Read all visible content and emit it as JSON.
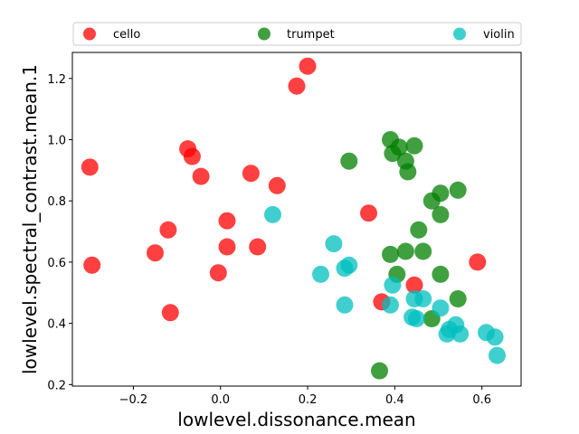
{
  "chart_data": {
    "type": "scatter",
    "xlabel": "lowlevel.dissonance.mean",
    "ylabel": "lowlevel.spectral_contrast.mean.1",
    "xlim": [
      -0.34,
      0.69
    ],
    "ylim": [
      0.195,
      1.285
    ],
    "xticks": [
      -0.2,
      0.0,
      0.2,
      0.4,
      0.6
    ],
    "xtick_labels": [
      "−0.2",
      "0.0",
      "0.2",
      "0.4",
      "0.6"
    ],
    "yticks": [
      0.2,
      0.4,
      0.6,
      0.8,
      1.0,
      1.2
    ],
    "ytick_labels": [
      "0.2",
      "0.4",
      "0.6",
      "0.8",
      "1.0",
      "1.2"
    ],
    "grid": false,
    "legend": {
      "placement": "top",
      "columns": 3
    },
    "series": [
      {
        "name": "cello",
        "color": "#ff0000",
        "points": [
          [
            0.2,
            1.24
          ],
          [
            0.175,
            1.175
          ],
          [
            -0.075,
            0.97
          ],
          [
            -0.065,
            0.945
          ],
          [
            -0.3,
            0.91
          ],
          [
            -0.045,
            0.88
          ],
          [
            0.07,
            0.89
          ],
          [
            0.13,
            0.85
          ],
          [
            0.34,
            0.76
          ],
          [
            0.015,
            0.735
          ],
          [
            -0.12,
            0.705
          ],
          [
            -0.15,
            0.63
          ],
          [
            0.015,
            0.65
          ],
          [
            0.085,
            0.65
          ],
          [
            -0.295,
            0.59
          ],
          [
            -0.005,
            0.565
          ],
          [
            0.59,
            0.6
          ],
          [
            0.445,
            0.525
          ],
          [
            0.37,
            0.47
          ],
          [
            -0.115,
            0.435
          ]
        ]
      },
      {
        "name": "trumpet",
        "color": "#008000",
        "points": [
          [
            0.39,
            1.0
          ],
          [
            0.41,
            0.975
          ],
          [
            0.445,
            0.98
          ],
          [
            0.395,
            0.955
          ],
          [
            0.425,
            0.93
          ],
          [
            0.43,
            0.895
          ],
          [
            0.295,
            0.93
          ],
          [
            0.505,
            0.825
          ],
          [
            0.485,
            0.8
          ],
          [
            0.545,
            0.835
          ],
          [
            0.505,
            0.755
          ],
          [
            0.455,
            0.705
          ],
          [
            0.425,
            0.635
          ],
          [
            0.465,
            0.635
          ],
          [
            0.39,
            0.625
          ],
          [
            0.405,
            0.56
          ],
          [
            0.505,
            0.56
          ],
          [
            0.545,
            0.48
          ],
          [
            0.485,
            0.415
          ],
          [
            0.365,
            0.245
          ]
        ]
      },
      {
        "name": "violin",
        "color": "#00bfbf",
        "points": [
          [
            0.12,
            0.755
          ],
          [
            0.26,
            0.66
          ],
          [
            0.295,
            0.59
          ],
          [
            0.285,
            0.58
          ],
          [
            0.23,
            0.56
          ],
          [
            0.395,
            0.525
          ],
          [
            0.445,
            0.48
          ],
          [
            0.465,
            0.48
          ],
          [
            0.39,
            0.46
          ],
          [
            0.285,
            0.46
          ],
          [
            0.505,
            0.45
          ],
          [
            0.44,
            0.42
          ],
          [
            0.45,
            0.415
          ],
          [
            0.54,
            0.395
          ],
          [
            0.525,
            0.38
          ],
          [
            0.52,
            0.365
          ],
          [
            0.55,
            0.365
          ],
          [
            0.61,
            0.37
          ],
          [
            0.63,
            0.355
          ],
          [
            0.635,
            0.295
          ]
        ]
      }
    ]
  }
}
